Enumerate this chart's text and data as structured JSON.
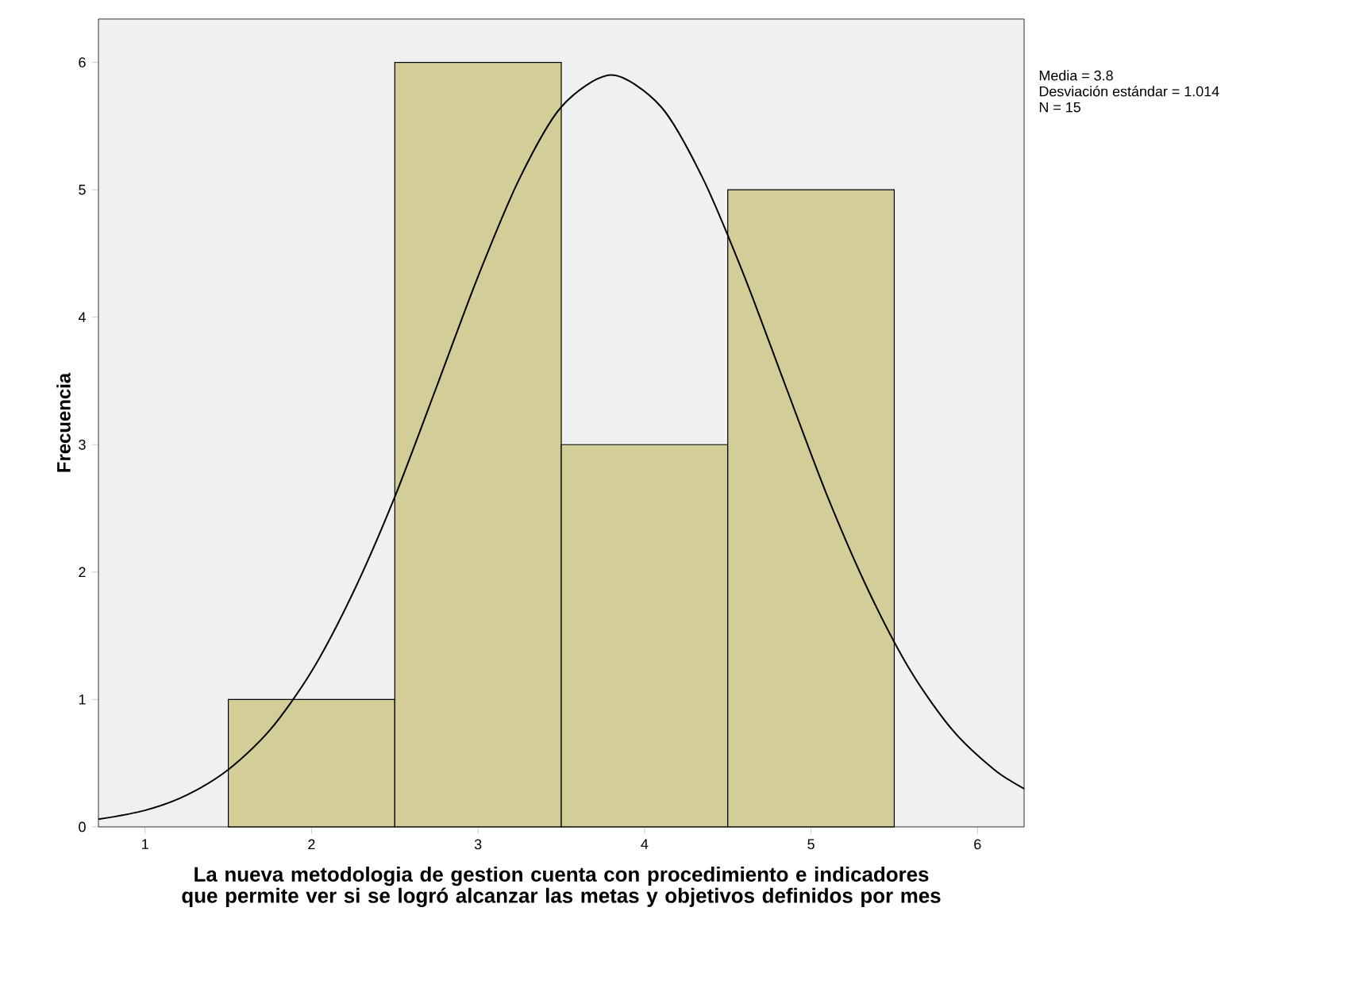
{
  "chart_data": {
    "type": "histogram",
    "xlabel": "La nueva metodologia de gestion cuenta con procedimiento e indicadores que permite ver si se logró alcanzar las metas y objetivos definidos por mes",
    "ylabel": "Frecuencia",
    "bins": [
      1.5,
      2.5,
      3.5,
      4.5,
      5.5
    ],
    "series": [
      {
        "color": "#d3ce97",
        "values": [
          1,
          6,
          3,
          5
        ]
      },
      {
        "type": "line",
        "color": "#000000",
        "x": [
          0.72,
          1.0,
          1.25,
          1.5,
          1.75,
          2.0,
          2.25,
          2.5,
          2.75,
          3.0,
          3.25,
          3.5,
          3.8,
          4.1,
          4.35,
          4.6,
          4.85,
          5.1,
          5.35,
          5.6,
          5.85,
          6.1,
          6.28
        ],
        "values": [
          0.06,
          0.13,
          0.25,
          0.45,
          0.76,
          1.22,
          1.84,
          2.59,
          3.45,
          4.32,
          5.09,
          5.65,
          5.9,
          5.65,
          5.09,
          4.32,
          3.45,
          2.59,
          1.84,
          1.22,
          0.76,
          0.45,
          0.3
        ]
      }
    ],
    "xlim": [
      0.72,
      6.28
    ],
    "ylim": [
      0,
      6.34
    ],
    "xticks": [
      1,
      2,
      3,
      4,
      5,
      6
    ],
    "yticks": [
      0,
      1,
      2,
      3,
      4,
      5,
      6
    ],
    "grid": false,
    "marker": "none",
    "line_style": "solid",
    "annotations": [
      "Media = 3.8",
      "Desviación estándar = 1.014",
      "N = 15"
    ]
  }
}
